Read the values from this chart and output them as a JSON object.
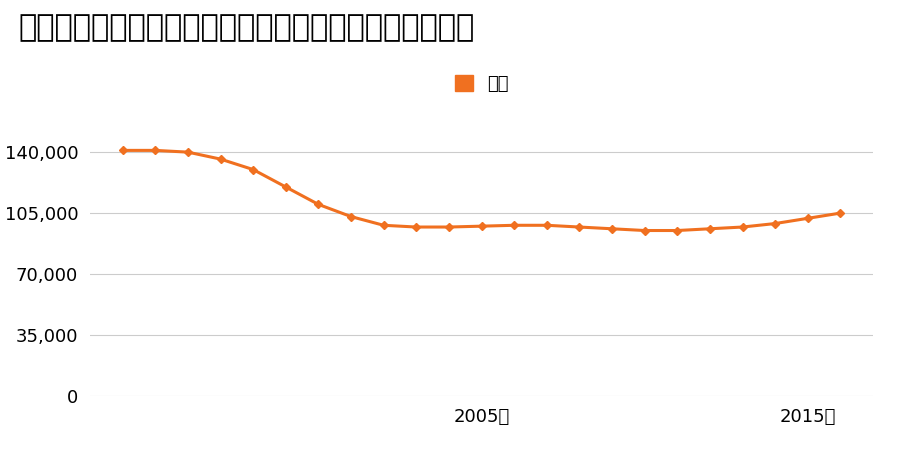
{
  "title": "福岡県福岡市早良区干隈３丁目１１０番１１の地価推移",
  "legend_label": "価格",
  "line_color": "#f07020",
  "marker_color": "#f07020",
  "background_color": "#ffffff",
  "years": [
    1994,
    1995,
    1996,
    1997,
    1998,
    1999,
    2000,
    2001,
    2002,
    2003,
    2004,
    2005,
    2006,
    2007,
    2008,
    2009,
    2010,
    2011,
    2012,
    2013,
    2014,
    2015,
    2016
  ],
  "values": [
    141000,
    141000,
    140000,
    136000,
    130000,
    120000,
    110000,
    103000,
    98000,
    97000,
    97000,
    97500,
    98000,
    98000,
    97000,
    96000,
    95000,
    95000,
    96000,
    97000,
    99000,
    102000,
    105000
  ],
  "yticks": [
    0,
    35000,
    70000,
    105000,
    140000
  ],
  "xtick_years": [
    2005,
    2015
  ],
  "ylim": [
    0,
    155000
  ],
  "xlim_start": 1993,
  "xlim_end": 2017,
  "title_fontsize": 22,
  "legend_fontsize": 13,
  "tick_fontsize": 13,
  "grid_color": "#cccccc",
  "grid_linewidth": 0.8
}
